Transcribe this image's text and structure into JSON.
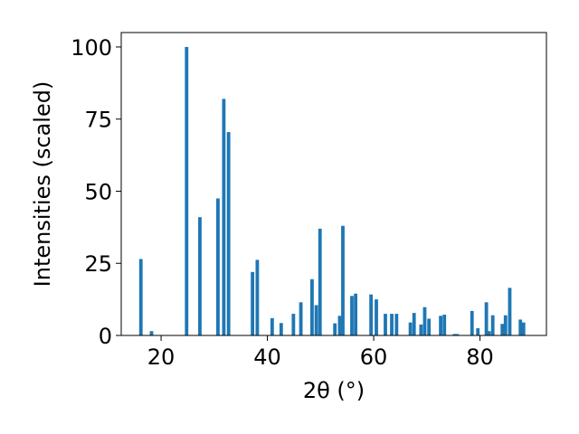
{
  "chart_data": {
    "type": "bar",
    "xlabel": "2θ (°)",
    "ylabel": "Intensities (scaled)",
    "xlim": [
      12.5,
      92.5
    ],
    "ylim": [
      0,
      105
    ],
    "xticks": [
      20,
      40,
      60,
      80
    ],
    "yticks": [
      0,
      25,
      50,
      75,
      100
    ],
    "bar_color": "#1f77b4",
    "bar_width": 0.65,
    "grid": false,
    "x": [
      16.2,
      18.2,
      24.8,
      27.3,
      30.7,
      31.8,
      32.7,
      37.2,
      38.1,
      40.9,
      42.6,
      44.9,
      46.3,
      48.4,
      49.2,
      49.9,
      52.7,
      53.6,
      54.2,
      55.9,
      56.6,
      59.5,
      60.5,
      62.2,
      63.4,
      64.3,
      66.9,
      67.6,
      68.9,
      69.6,
      70.4,
      72.6,
      73.3,
      75.2,
      75.7,
      78.5,
      79.6,
      81.2,
      81.7,
      82.4,
      84.2,
      84.8,
      85.6,
      87.6,
      88.2
    ],
    "values": [
      26.5,
      1.5,
      100,
      41,
      47.5,
      82,
      70.5,
      22,
      26.2,
      6,
      4.3,
      7.5,
      11.5,
      19.5,
      10.5,
      37,
      4.2,
      6.8,
      38,
      13.7,
      14.5,
      14.2,
      12.5,
      7.5,
      7.5,
      7.5,
      4.5,
      7.8,
      3.8,
      9.8,
      5.8,
      6.8,
      7.2,
      0.5,
      0.5,
      8.5,
      2.5,
      11.5,
      1.5,
      7,
      4,
      7,
      16.5,
      5.5,
      4.5
    ]
  }
}
